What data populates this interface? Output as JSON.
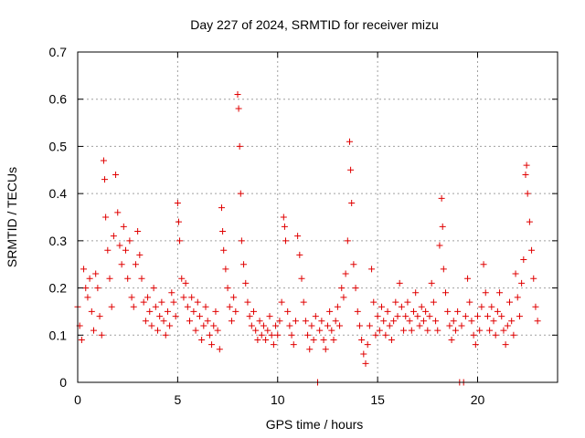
{
  "chart_data": {
    "type": "scatter",
    "title": "Day 227 of 2024, SRMTID for receiver mizu",
    "xlabel": "GPS time / hours",
    "ylabel": "SRMTID / TECUs",
    "xlim": [
      0,
      24
    ],
    "ylim": [
      0,
      0.7
    ],
    "xticks": [
      0,
      5,
      10,
      15,
      20
    ],
    "yticks": [
      0,
      0.1,
      0.2,
      0.3,
      0.4,
      0.5,
      0.6,
      0.7
    ],
    "xtick_labels": [
      "0",
      "5",
      "10",
      "15",
      "20"
    ],
    "ytick_labels": [
      "0",
      "0.1",
      "0.2",
      "0.3",
      "0.4",
      "0.5",
      "0.6",
      "0.7"
    ],
    "grid": true,
    "marker": "plus",
    "color": "#e00000",
    "series": [
      {
        "name": "SRMTID",
        "points": [
          [
            0.0,
            0.16
          ],
          [
            0.1,
            0.12
          ],
          [
            0.2,
            0.09
          ],
          [
            0.3,
            0.24
          ],
          [
            0.4,
            0.2
          ],
          [
            0.5,
            0.18
          ],
          [
            0.6,
            0.22
          ],
          [
            0.7,
            0.15
          ],
          [
            0.8,
            0.11
          ],
          [
            0.9,
            0.23
          ],
          [
            1.0,
            0.2
          ],
          [
            1.1,
            0.14
          ],
          [
            1.2,
            0.1
          ],
          [
            1.3,
            0.47
          ],
          [
            1.35,
            0.43
          ],
          [
            1.4,
            0.35
          ],
          [
            1.5,
            0.28
          ],
          [
            1.6,
            0.22
          ],
          [
            1.7,
            0.16
          ],
          [
            1.8,
            0.31
          ],
          [
            1.9,
            0.44
          ],
          [
            2.0,
            0.36
          ],
          [
            2.1,
            0.29
          ],
          [
            2.2,
            0.25
          ],
          [
            2.3,
            0.33
          ],
          [
            2.4,
            0.28
          ],
          [
            2.5,
            0.22
          ],
          [
            2.6,
            0.3
          ],
          [
            2.7,
            0.18
          ],
          [
            2.8,
            0.16
          ],
          [
            2.9,
            0.25
          ],
          [
            3.0,
            0.32
          ],
          [
            3.1,
            0.27
          ],
          [
            3.2,
            0.22
          ],
          [
            3.3,
            0.17
          ],
          [
            3.4,
            0.13
          ],
          [
            3.5,
            0.18
          ],
          [
            3.6,
            0.15
          ],
          [
            3.7,
            0.12
          ],
          [
            3.8,
            0.2
          ],
          [
            3.9,
            0.16
          ],
          [
            4.0,
            0.11
          ],
          [
            4.1,
            0.14
          ],
          [
            4.2,
            0.17
          ],
          [
            4.3,
            0.13
          ],
          [
            4.4,
            0.1
          ],
          [
            4.5,
            0.15
          ],
          [
            4.6,
            0.12
          ],
          [
            4.7,
            0.19
          ],
          [
            4.8,
            0.17
          ],
          [
            4.9,
            0.14
          ],
          [
            5.0,
            0.38
          ],
          [
            5.05,
            0.34
          ],
          [
            5.1,
            0.3
          ],
          [
            5.2,
            0.22
          ],
          [
            5.3,
            0.18
          ],
          [
            5.4,
            0.21
          ],
          [
            5.5,
            0.16
          ],
          [
            5.6,
            0.13
          ],
          [
            5.7,
            0.18
          ],
          [
            5.8,
            0.15
          ],
          [
            5.9,
            0.11
          ],
          [
            6.0,
            0.17
          ],
          [
            6.1,
            0.14
          ],
          [
            6.2,
            0.09
          ],
          [
            6.3,
            0.12
          ],
          [
            6.4,
            0.16
          ],
          [
            6.5,
            0.13
          ],
          [
            6.6,
            0.1
          ],
          [
            6.7,
            0.08
          ],
          [
            6.8,
            0.12
          ],
          [
            6.9,
            0.15
          ],
          [
            7.0,
            0.11
          ],
          [
            7.1,
            0.07
          ],
          [
            7.2,
            0.37
          ],
          [
            7.25,
            0.32
          ],
          [
            7.3,
            0.28
          ],
          [
            7.4,
            0.24
          ],
          [
            7.5,
            0.2
          ],
          [
            7.6,
            0.16
          ],
          [
            7.7,
            0.13
          ],
          [
            7.8,
            0.18
          ],
          [
            7.9,
            0.15
          ],
          [
            8.0,
            0.61
          ],
          [
            8.05,
            0.58
          ],
          [
            8.1,
            0.5
          ],
          [
            8.15,
            0.4
          ],
          [
            8.2,
            0.3
          ],
          [
            8.3,
            0.25
          ],
          [
            8.4,
            0.21
          ],
          [
            8.5,
            0.17
          ],
          [
            8.6,
            0.14
          ],
          [
            8.7,
            0.12
          ],
          [
            8.8,
            0.15
          ],
          [
            8.9,
            0.11
          ],
          [
            9.0,
            0.09
          ],
          [
            9.1,
            0.13
          ],
          [
            9.2,
            0.1
          ],
          [
            9.3,
            0.12
          ],
          [
            9.4,
            0.09
          ],
          [
            9.5,
            0.11
          ],
          [
            9.6,
            0.14
          ],
          [
            9.7,
            0.1
          ],
          [
            9.8,
            0.08
          ],
          [
            9.9,
            0.12
          ],
          [
            10.0,
            0.1
          ],
          [
            10.1,
            0.13
          ],
          [
            10.2,
            0.17
          ],
          [
            10.3,
            0.35
          ],
          [
            10.35,
            0.33
          ],
          [
            10.4,
            0.3
          ],
          [
            10.5,
            0.15
          ],
          [
            10.6,
            0.12
          ],
          [
            10.7,
            0.1
          ],
          [
            10.8,
            0.08
          ],
          [
            10.9,
            0.13
          ],
          [
            11.0,
            0.31
          ],
          [
            11.1,
            0.27
          ],
          [
            11.2,
            0.22
          ],
          [
            11.3,
            0.17
          ],
          [
            11.4,
            0.13
          ],
          [
            11.5,
            0.1
          ],
          [
            11.6,
            0.07
          ],
          [
            11.7,
            0.12
          ],
          [
            11.8,
            0.09
          ],
          [
            11.9,
            0.14
          ],
          [
            12.0,
            0.0
          ],
          [
            12.1,
            0.11
          ],
          [
            12.2,
            0.13
          ],
          [
            12.3,
            0.09
          ],
          [
            12.4,
            0.07
          ],
          [
            12.5,
            0.12
          ],
          [
            12.6,
            0.15
          ],
          [
            12.7,
            0.11
          ],
          [
            12.8,
            0.09
          ],
          [
            12.9,
            0.13
          ],
          [
            13.0,
            0.16
          ],
          [
            13.1,
            0.12
          ],
          [
            13.2,
            0.2
          ],
          [
            13.3,
            0.18
          ],
          [
            13.4,
            0.23
          ],
          [
            13.5,
            0.3
          ],
          [
            13.6,
            0.51
          ],
          [
            13.65,
            0.45
          ],
          [
            13.7,
            0.38
          ],
          [
            13.8,
            0.25
          ],
          [
            13.9,
            0.2
          ],
          [
            14.0,
            0.15
          ],
          [
            14.1,
            0.12
          ],
          [
            14.2,
            0.09
          ],
          [
            14.3,
            0.06
          ],
          [
            14.4,
            0.04
          ],
          [
            14.5,
            0.08
          ],
          [
            14.6,
            0.12
          ],
          [
            14.7,
            0.24
          ],
          [
            14.8,
            0.17
          ],
          [
            14.9,
            0.1
          ],
          [
            15.0,
            0.14
          ],
          [
            15.1,
            0.11
          ],
          [
            15.2,
            0.16
          ],
          [
            15.3,
            0.13
          ],
          [
            15.4,
            0.1
          ],
          [
            15.5,
            0.15
          ],
          [
            15.6,
            0.12
          ],
          [
            15.7,
            0.09
          ],
          [
            15.8,
            0.13
          ],
          [
            15.9,
            0.17
          ],
          [
            16.0,
            0.14
          ],
          [
            16.1,
            0.21
          ],
          [
            16.2,
            0.16
          ],
          [
            16.3,
            0.11
          ],
          [
            16.4,
            0.14
          ],
          [
            16.5,
            0.17
          ],
          [
            16.6,
            0.13
          ],
          [
            16.7,
            0.11
          ],
          [
            16.8,
            0.15
          ],
          [
            16.9,
            0.19
          ],
          [
            17.0,
            0.14
          ],
          [
            17.1,
            0.12
          ],
          [
            17.2,
            0.16
          ],
          [
            17.3,
            0.13
          ],
          [
            17.4,
            0.15
          ],
          [
            17.5,
            0.11
          ],
          [
            17.6,
            0.14
          ],
          [
            17.7,
            0.21
          ],
          [
            17.8,
            0.17
          ],
          [
            17.9,
            0.13
          ],
          [
            18.0,
            0.11
          ],
          [
            18.1,
            0.29
          ],
          [
            18.2,
            0.39
          ],
          [
            18.25,
            0.33
          ],
          [
            18.3,
            0.24
          ],
          [
            18.4,
            0.19
          ],
          [
            18.5,
            0.15
          ],
          [
            18.6,
            0.12
          ],
          [
            18.7,
            0.09
          ],
          [
            18.8,
            0.13
          ],
          [
            18.9,
            0.11
          ],
          [
            19.0,
            0.15
          ],
          [
            19.1,
            0.0
          ],
          [
            19.2,
            0.12
          ],
          [
            19.3,
            0.0
          ],
          [
            19.4,
            0.14
          ],
          [
            19.5,
            0.22
          ],
          [
            19.6,
            0.17
          ],
          [
            19.7,
            0.13
          ],
          [
            19.8,
            0.1
          ],
          [
            19.9,
            0.08
          ],
          [
            20.0,
            0.14
          ],
          [
            20.1,
            0.11
          ],
          [
            20.2,
            0.16
          ],
          [
            20.3,
            0.25
          ],
          [
            20.4,
            0.19
          ],
          [
            20.5,
            0.14
          ],
          [
            20.6,
            0.11
          ],
          [
            20.7,
            0.16
          ],
          [
            20.8,
            0.13
          ],
          [
            20.9,
            0.1
          ],
          [
            21.0,
            0.15
          ],
          [
            21.1,
            0.19
          ],
          [
            21.2,
            0.14
          ],
          [
            21.3,
            0.11
          ],
          [
            21.4,
            0.08
          ],
          [
            21.5,
            0.12
          ],
          [
            21.6,
            0.17
          ],
          [
            21.7,
            0.13
          ],
          [
            21.8,
            0.1
          ],
          [
            21.9,
            0.23
          ],
          [
            22.0,
            0.18
          ],
          [
            22.1,
            0.14
          ],
          [
            22.2,
            0.21
          ],
          [
            22.3,
            0.26
          ],
          [
            22.4,
            0.44
          ],
          [
            22.45,
            0.46
          ],
          [
            22.5,
            0.4
          ],
          [
            22.6,
            0.34
          ],
          [
            22.7,
            0.28
          ],
          [
            22.8,
            0.22
          ],
          [
            22.9,
            0.16
          ],
          [
            23.0,
            0.13
          ]
        ]
      }
    ]
  }
}
